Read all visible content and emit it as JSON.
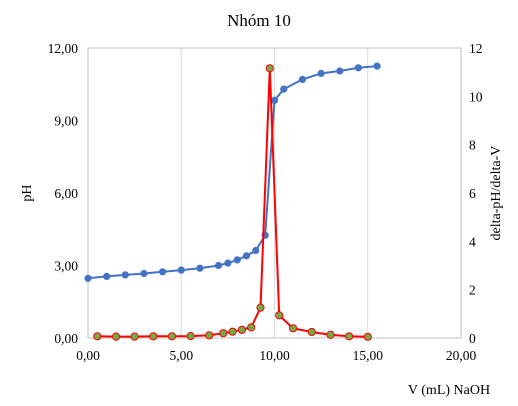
{
  "chart_data": {
    "type": "line",
    "title": "Nhóm 10",
    "xlabel": "V (mL) NaOH",
    "ylabel": "pH",
    "y2label": "delta-pH/delta-V",
    "xlim": [
      0,
      20
    ],
    "ylim": [
      0,
      12
    ],
    "y2lim": [
      0,
      12
    ],
    "x_ticks": [
      "0,00",
      "5,00",
      "10,00",
      "15,00",
      "20,00"
    ],
    "y_ticks": [
      "0,00",
      "3,00",
      "6,00",
      "9,00",
      "12,00"
    ],
    "y2_ticks": [
      "0",
      "2",
      "4",
      "6",
      "8",
      "10",
      "12"
    ],
    "grid": "vertical",
    "legend": "none",
    "series": [
      {
        "axis": "left",
        "color": "#4472c4",
        "marker_color": "#4472c4",
        "x": [
          0,
          1,
          2,
          3,
          4,
          5,
          6,
          7,
          7.5,
          8,
          8.5,
          9,
          9.5,
          10,
          10.5,
          11.5,
          12.5,
          13.5,
          14.5,
          15.5
        ],
        "y": [
          2.47,
          2.55,
          2.61,
          2.67,
          2.74,
          2.81,
          2.89,
          3.0,
          3.1,
          3.23,
          3.4,
          3.62,
          4.25,
          9.83,
          10.3,
          10.7,
          10.95,
          11.05,
          11.18,
          11.25
        ]
      },
      {
        "axis": "right",
        "color": "#ff0000",
        "marker_color": "#70ad47",
        "x": [
          0.5,
          1.5,
          2.5,
          3.5,
          4.5,
          5.5,
          6.5,
          7.25,
          7.75,
          8.25,
          8.75,
          9.25,
          9.75,
          10.25,
          11,
          12,
          13,
          14,
          15
        ],
        "y": [
          0.07,
          0.06,
          0.06,
          0.07,
          0.07,
          0.08,
          0.11,
          0.2,
          0.26,
          0.34,
          0.44,
          1.26,
          11.16,
          0.94,
          0.4,
          0.25,
          0.13,
          0.07,
          0.05
        ]
      }
    ]
  }
}
